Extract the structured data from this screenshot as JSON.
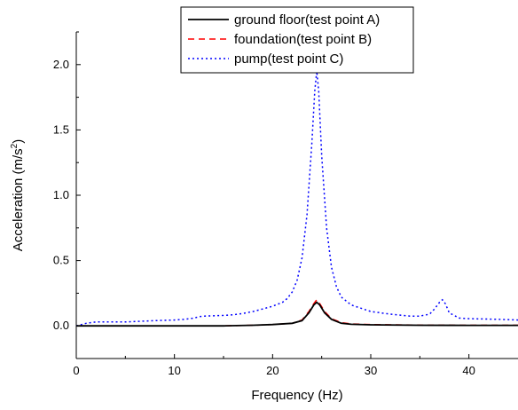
{
  "chart_data": {
    "type": "line",
    "xlabel": "Frequency (Hz)",
    "ylabel": "Acceleration (m/s",
    "ylabel_superscript": "2",
    "ylabel_suffix": ")",
    "xlim": [
      0,
      45
    ],
    "ylim": [
      -0.25,
      2.25
    ],
    "xticks": [
      0,
      10,
      20,
      30,
      40
    ],
    "xtick_labels": [
      "0",
      "10",
      "20",
      "30",
      "40"
    ],
    "yticks": [
      0.0,
      0.5,
      1.0,
      1.5,
      2.0
    ],
    "ytick_labels": [
      "0.0",
      "0.5",
      "1.0",
      "1.5",
      "2.0"
    ],
    "grid": false,
    "legend_position": "top-right",
    "series": [
      {
        "name": "ground floor(test point A)",
        "color": "#000000",
        "dash": "solid",
        "x": [
          0,
          5,
          10,
          15,
          18,
          20,
          22,
          23,
          23.7,
          24.2,
          24.5,
          24.8,
          25.3,
          26,
          27,
          28,
          30,
          35,
          40,
          45
        ],
        "y": [
          0.0,
          0.0,
          0.0,
          0.0,
          0.005,
          0.01,
          0.02,
          0.04,
          0.1,
          0.16,
          0.18,
          0.16,
          0.1,
          0.05,
          0.02,
          0.012,
          0.008,
          0.005,
          0.004,
          0.004
        ]
      },
      {
        "name": "foundation(test point B)",
        "color": "#ff0000",
        "dash": "dashed",
        "x": [
          0,
          5,
          10,
          15,
          18,
          20,
          22,
          23,
          23.7,
          24.2,
          24.5,
          24.8,
          25.3,
          26,
          27,
          28,
          30,
          35,
          40,
          45
        ],
        "y": [
          0.0,
          0.0,
          0.0,
          0.0,
          0.005,
          0.01,
          0.02,
          0.045,
          0.11,
          0.17,
          0.2,
          0.17,
          0.11,
          0.055,
          0.025,
          0.015,
          0.01,
          0.006,
          0.005,
          0.005
        ]
      },
      {
        "name": "pump(test point C)",
        "color": "#0000ff",
        "dash": "dotted",
        "x": [
          0,
          1,
          2,
          5,
          8,
          10,
          11,
          12,
          12.5,
          13,
          15,
          16,
          17,
          18,
          19,
          20,
          21,
          21.5,
          22,
          22.5,
          23,
          23.5,
          24,
          24.3,
          24.5,
          24.7,
          25,
          25.5,
          26,
          26.5,
          27,
          28,
          30,
          32,
          34,
          35,
          36,
          36.5,
          37,
          37.3,
          37.6,
          38,
          39,
          40,
          43,
          45
        ],
        "y": [
          0.0,
          0.02,
          0.03,
          0.03,
          0.04,
          0.045,
          0.05,
          0.06,
          0.07,
          0.075,
          0.08,
          0.085,
          0.095,
          0.11,
          0.13,
          0.15,
          0.18,
          0.21,
          0.26,
          0.35,
          0.52,
          0.85,
          1.4,
          1.8,
          1.95,
          1.8,
          1.3,
          0.75,
          0.45,
          0.3,
          0.22,
          0.16,
          0.11,
          0.09,
          0.075,
          0.075,
          0.09,
          0.13,
          0.18,
          0.2,
          0.17,
          0.1,
          0.06,
          0.055,
          0.05,
          0.045
        ]
      }
    ]
  }
}
